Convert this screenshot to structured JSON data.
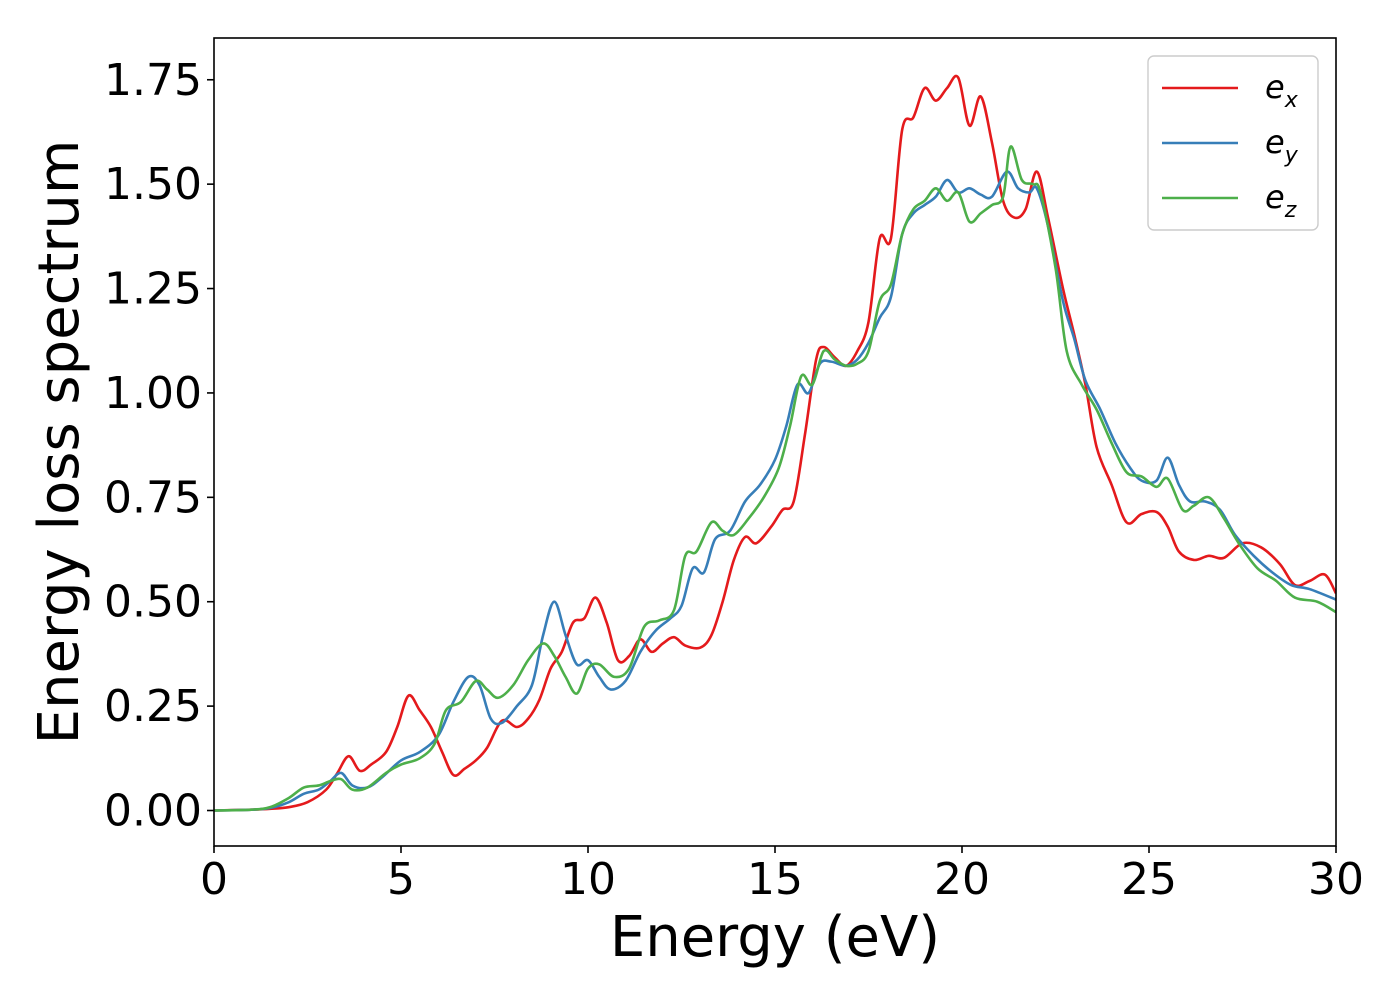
{
  "chart_data": {
    "type": "line",
    "title": "",
    "xlabel": "Energy (eV)",
    "ylabel": "Energy loss spectrum",
    "xlim": [
      0,
      30
    ],
    "ylim": [
      -0.085,
      1.85
    ],
    "xticks": [
      0,
      5,
      10,
      15,
      20,
      25,
      30
    ],
    "xtick_labels": [
      "0",
      "5",
      "10",
      "15",
      "20",
      "25",
      "30"
    ],
    "yticks": [
      0,
      0.25,
      0.5,
      0.75,
      1.0,
      1.25,
      1.5,
      1.75
    ],
    "ytick_labels": [
      "0.00",
      "0.25",
      "0.50",
      "0.75",
      "1.00",
      "1.25",
      "1.50",
      "1.75"
    ],
    "grid": false,
    "legend_position": "top-right",
    "series": [
      {
        "name": "e_x",
        "label_main": "e",
        "label_sub": "x",
        "color": "#e41a1c",
        "points": [
          [
            0,
            0
          ],
          [
            1,
            0.002
          ],
          [
            1.5,
            0.004
          ],
          [
            2,
            0.008
          ],
          [
            2.5,
            0.02
          ],
          [
            3,
            0.05
          ],
          [
            3.3,
            0.09
          ],
          [
            3.6,
            0.13
          ],
          [
            3.9,
            0.095
          ],
          [
            4.2,
            0.11
          ],
          [
            4.6,
            0.14
          ],
          [
            4.9,
            0.2
          ],
          [
            5.2,
            0.275
          ],
          [
            5.5,
            0.24
          ],
          [
            5.8,
            0.2
          ],
          [
            6.1,
            0.14
          ],
          [
            6.4,
            0.085
          ],
          [
            6.7,
            0.1
          ],
          [
            7,
            0.12
          ],
          [
            7.3,
            0.15
          ],
          [
            7.7,
            0.215
          ],
          [
            8.1,
            0.2
          ],
          [
            8.4,
            0.22
          ],
          [
            8.7,
            0.265
          ],
          [
            9,
            0.34
          ],
          [
            9.3,
            0.38
          ],
          [
            9.6,
            0.45
          ],
          [
            9.9,
            0.46
          ],
          [
            10.2,
            0.51
          ],
          [
            10.5,
            0.45
          ],
          [
            10.8,
            0.36
          ],
          [
            11.1,
            0.37
          ],
          [
            11.4,
            0.41
          ],
          [
            11.7,
            0.38
          ],
          [
            12,
            0.4
          ],
          [
            12.3,
            0.415
          ],
          [
            12.6,
            0.395
          ],
          [
            13,
            0.39
          ],
          [
            13.3,
            0.42
          ],
          [
            13.6,
            0.5
          ],
          [
            13.9,
            0.6
          ],
          [
            14.2,
            0.655
          ],
          [
            14.5,
            0.64
          ],
          [
            14.9,
            0.68
          ],
          [
            15.2,
            0.72
          ],
          [
            15.5,
            0.74
          ],
          [
            15.8,
            0.9
          ],
          [
            16.1,
            1.08
          ],
          [
            16.3,
            1.11
          ],
          [
            16.6,
            1.085
          ],
          [
            16.9,
            1.065
          ],
          [
            17.2,
            1.1
          ],
          [
            17.5,
            1.17
          ],
          [
            17.8,
            1.37
          ],
          [
            18.1,
            1.37
          ],
          [
            18.4,
            1.63
          ],
          [
            18.7,
            1.66
          ],
          [
            19,
            1.73
          ],
          [
            19.3,
            1.7
          ],
          [
            19.6,
            1.73
          ],
          [
            19.9,
            1.755
          ],
          [
            20.2,
            1.64
          ],
          [
            20.5,
            1.71
          ],
          [
            20.8,
            1.6
          ],
          [
            21.1,
            1.46
          ],
          [
            21.4,
            1.42
          ],
          [
            21.7,
            1.44
          ],
          [
            22,
            1.53
          ],
          [
            22.3,
            1.42
          ],
          [
            22.7,
            1.25
          ],
          [
            23,
            1.14
          ],
          [
            23.3,
            1.02
          ],
          [
            23.6,
            0.87
          ],
          [
            24,
            0.78
          ],
          [
            24.4,
            0.69
          ],
          [
            24.8,
            0.71
          ],
          [
            25.2,
            0.715
          ],
          [
            25.5,
            0.68
          ],
          [
            25.8,
            0.62
          ],
          [
            26.2,
            0.6
          ],
          [
            26.6,
            0.61
          ],
          [
            27,
            0.605
          ],
          [
            27.5,
            0.64
          ],
          [
            28,
            0.63
          ],
          [
            28.5,
            0.59
          ],
          [
            28.9,
            0.54
          ],
          [
            29.3,
            0.55
          ],
          [
            29.7,
            0.565
          ],
          [
            30,
            0.52
          ]
        ]
      },
      {
        "name": "e_y",
        "label_main": "e",
        "label_sub": "y",
        "color": "#377eb8",
        "points": [
          [
            0,
            0
          ],
          [
            1,
            0.002
          ],
          [
            1.5,
            0.006
          ],
          [
            2,
            0.02
          ],
          [
            2.4,
            0.04
          ],
          [
            2.8,
            0.05
          ],
          [
            3.1,
            0.07
          ],
          [
            3.4,
            0.09
          ],
          [
            3.7,
            0.06
          ],
          [
            4.1,
            0.055
          ],
          [
            4.5,
            0.08
          ],
          [
            5,
            0.12
          ],
          [
            5.5,
            0.14
          ],
          [
            6,
            0.18
          ],
          [
            6.4,
            0.26
          ],
          [
            6.8,
            0.32
          ],
          [
            7.1,
            0.3
          ],
          [
            7.4,
            0.22
          ],
          [
            7.7,
            0.21
          ],
          [
            8.1,
            0.25
          ],
          [
            8.5,
            0.3
          ],
          [
            8.8,
            0.42
          ],
          [
            9.1,
            0.5
          ],
          [
            9.4,
            0.42
          ],
          [
            9.7,
            0.35
          ],
          [
            10,
            0.36
          ],
          [
            10.3,
            0.32
          ],
          [
            10.6,
            0.29
          ],
          [
            11,
            0.31
          ],
          [
            11.4,
            0.38
          ],
          [
            11.8,
            0.43
          ],
          [
            12.2,
            0.46
          ],
          [
            12.5,
            0.49
          ],
          [
            12.8,
            0.58
          ],
          [
            13.1,
            0.57
          ],
          [
            13.4,
            0.65
          ],
          [
            13.8,
            0.67
          ],
          [
            14.2,
            0.74
          ],
          [
            14.6,
            0.78
          ],
          [
            15,
            0.84
          ],
          [
            15.3,
            0.92
          ],
          [
            15.6,
            1.02
          ],
          [
            15.9,
            1.0
          ],
          [
            16.2,
            1.07
          ],
          [
            16.5,
            1.075
          ],
          [
            16.9,
            1.065
          ],
          [
            17.2,
            1.08
          ],
          [
            17.5,
            1.12
          ],
          [
            17.8,
            1.18
          ],
          [
            18.1,
            1.23
          ],
          [
            18.4,
            1.38
          ],
          [
            18.7,
            1.43
          ],
          [
            19,
            1.45
          ],
          [
            19.3,
            1.47
          ],
          [
            19.6,
            1.51
          ],
          [
            19.9,
            1.48
          ],
          [
            20.2,
            1.49
          ],
          [
            20.5,
            1.475
          ],
          [
            20.8,
            1.47
          ],
          [
            21.2,
            1.53
          ],
          [
            21.5,
            1.49
          ],
          [
            21.8,
            1.48
          ],
          [
            22,
            1.49
          ],
          [
            22.3,
            1.4
          ],
          [
            22.7,
            1.22
          ],
          [
            23,
            1.13
          ],
          [
            23.3,
            1.03
          ],
          [
            23.7,
            0.96
          ],
          [
            24.1,
            0.88
          ],
          [
            24.5,
            0.82
          ],
          [
            24.8,
            0.79
          ],
          [
            25.2,
            0.79
          ],
          [
            25.5,
            0.845
          ],
          [
            25.8,
            0.78
          ],
          [
            26.1,
            0.74
          ],
          [
            26.5,
            0.74
          ],
          [
            26.9,
            0.72
          ],
          [
            27.3,
            0.66
          ],
          [
            27.8,
            0.61
          ],
          [
            28.3,
            0.57
          ],
          [
            28.8,
            0.54
          ],
          [
            29.3,
            0.53
          ],
          [
            30,
            0.505
          ]
        ]
      },
      {
        "name": "e_z",
        "label_main": "e",
        "label_sub": "z",
        "color": "#4daf4a",
        "points": [
          [
            0,
            0
          ],
          [
            1,
            0.002
          ],
          [
            1.5,
            0.008
          ],
          [
            2,
            0.03
          ],
          [
            2.4,
            0.055
          ],
          [
            2.8,
            0.06
          ],
          [
            3.1,
            0.07
          ],
          [
            3.4,
            0.075
          ],
          [
            3.7,
            0.05
          ],
          [
            4.1,
            0.055
          ],
          [
            4.6,
            0.09
          ],
          [
            5,
            0.11
          ],
          [
            5.5,
            0.125
          ],
          [
            5.9,
            0.16
          ],
          [
            6.2,
            0.24
          ],
          [
            6.6,
            0.26
          ],
          [
            7,
            0.31
          ],
          [
            7.3,
            0.29
          ],
          [
            7.6,
            0.27
          ],
          [
            8,
            0.3
          ],
          [
            8.4,
            0.36
          ],
          [
            8.8,
            0.4
          ],
          [
            9.1,
            0.37
          ],
          [
            9.4,
            0.32
          ],
          [
            9.7,
            0.28
          ],
          [
            10,
            0.34
          ],
          [
            10.3,
            0.35
          ],
          [
            10.7,
            0.32
          ],
          [
            11.1,
            0.34
          ],
          [
            11.5,
            0.44
          ],
          [
            11.9,
            0.455
          ],
          [
            12.3,
            0.48
          ],
          [
            12.6,
            0.61
          ],
          [
            12.9,
            0.62
          ],
          [
            13.3,
            0.69
          ],
          [
            13.6,
            0.67
          ],
          [
            13.9,
            0.66
          ],
          [
            14.3,
            0.7
          ],
          [
            14.7,
            0.75
          ],
          [
            15.1,
            0.82
          ],
          [
            15.4,
            0.92
          ],
          [
            15.7,
            1.04
          ],
          [
            16,
            1.02
          ],
          [
            16.3,
            1.1
          ],
          [
            16.6,
            1.08
          ],
          [
            16.9,
            1.065
          ],
          [
            17.2,
            1.07
          ],
          [
            17.5,
            1.1
          ],
          [
            17.8,
            1.22
          ],
          [
            18.1,
            1.26
          ],
          [
            18.4,
            1.38
          ],
          [
            18.7,
            1.44
          ],
          [
            19,
            1.46
          ],
          [
            19.3,
            1.49
          ],
          [
            19.6,
            1.46
          ],
          [
            19.9,
            1.48
          ],
          [
            20.2,
            1.41
          ],
          [
            20.5,
            1.43
          ],
          [
            20.8,
            1.45
          ],
          [
            21.1,
            1.47
          ],
          [
            21.3,
            1.59
          ],
          [
            21.6,
            1.51
          ],
          [
            21.9,
            1.5
          ],
          [
            22.1,
            1.48
          ],
          [
            22.5,
            1.3
          ],
          [
            22.8,
            1.1
          ],
          [
            23.2,
            1.02
          ],
          [
            23.6,
            0.96
          ],
          [
            24,
            0.88
          ],
          [
            24.4,
            0.81
          ],
          [
            24.8,
            0.8
          ],
          [
            25.2,
            0.775
          ],
          [
            25.5,
            0.795
          ],
          [
            25.9,
            0.72
          ],
          [
            26.2,
            0.73
          ],
          [
            26.6,
            0.75
          ],
          [
            27,
            0.7
          ],
          [
            27.4,
            0.64
          ],
          [
            27.9,
            0.58
          ],
          [
            28.4,
            0.55
          ],
          [
            28.9,
            0.51
          ],
          [
            29.5,
            0.5
          ],
          [
            30,
            0.475
          ]
        ]
      }
    ]
  }
}
